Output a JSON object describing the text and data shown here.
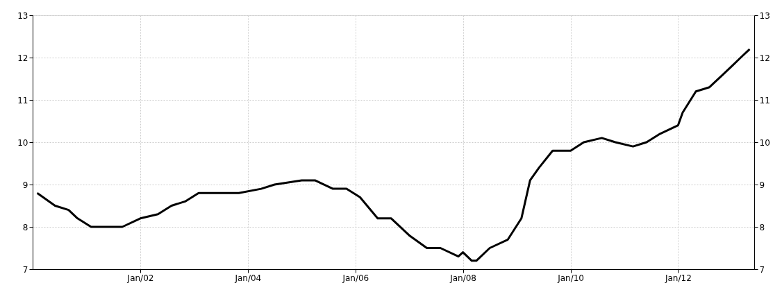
{
  "chart_data": {
    "type": "line",
    "x": [
      "2000-02",
      "2000-06",
      "2000-09",
      "2000-11",
      "2001-02",
      "2001-09",
      "2002-01",
      "2002-05",
      "2002-08",
      "2002-11",
      "2003-02",
      "2003-11",
      "2004-04",
      "2004-07",
      "2005-01",
      "2005-04",
      "2005-08",
      "2005-11",
      "2006-02",
      "2006-06",
      "2006-09",
      "2007-01",
      "2007-05",
      "2007-08",
      "2007-12",
      "2008-01",
      "2008-03",
      "2008-04",
      "2008-07",
      "2008-11",
      "2009-02",
      "2009-04",
      "2009-06",
      "2009-09",
      "2010-01",
      "2010-04",
      "2010-08",
      "2010-11",
      "2011-03",
      "2011-06",
      "2011-09",
      "2012-01",
      "2012-02",
      "2012-05",
      "2012-08",
      "2012-11",
      "2013-01",
      "2013-03",
      "2013-05"
    ],
    "series": [
      {
        "color": "#000000",
        "values": [
          8.8,
          8.5,
          8.4,
          8.2,
          8.0,
          8.0,
          8.2,
          8.3,
          8.5,
          8.6,
          8.8,
          8.8,
          8.9,
          9.0,
          9.1,
          9.1,
          8.9,
          8.9,
          8.7,
          8.2,
          8.2,
          7.8,
          7.5,
          7.5,
          7.3,
          7.4,
          7.2,
          7.2,
          7.5,
          7.7,
          8.2,
          9.1,
          9.4,
          9.8,
          9.8,
          10.0,
          10.1,
          10.0,
          9.9,
          10.0,
          10.2,
          10.4,
          10.7,
          11.2,
          11.3,
          11.6,
          11.8,
          12.0,
          12.2
        ]
      }
    ],
    "xlim": [
      "2000-01",
      "2013-06"
    ],
    "xticks": [
      {
        "value": "2002-01",
        "label": "Jan/02"
      },
      {
        "value": "2004-01",
        "label": "Jan/04"
      },
      {
        "value": "2006-01",
        "label": "Jan/06"
      },
      {
        "value": "2008-01",
        "label": "Jan/08"
      },
      {
        "value": "2010-01",
        "label": "Jan/10"
      },
      {
        "value": "2012-01",
        "label": "Jan/12"
      }
    ],
    "ylim": [
      7,
      13
    ],
    "yticks": [
      7,
      8,
      9,
      10,
      11,
      12,
      13
    ],
    "y2lim": [
      7,
      13
    ],
    "y2ticks": [
      7,
      8,
      9,
      10,
      11,
      12,
      13
    ],
    "grid": true,
    "legend": false,
    "marker": "none",
    "line_style": "solid"
  }
}
